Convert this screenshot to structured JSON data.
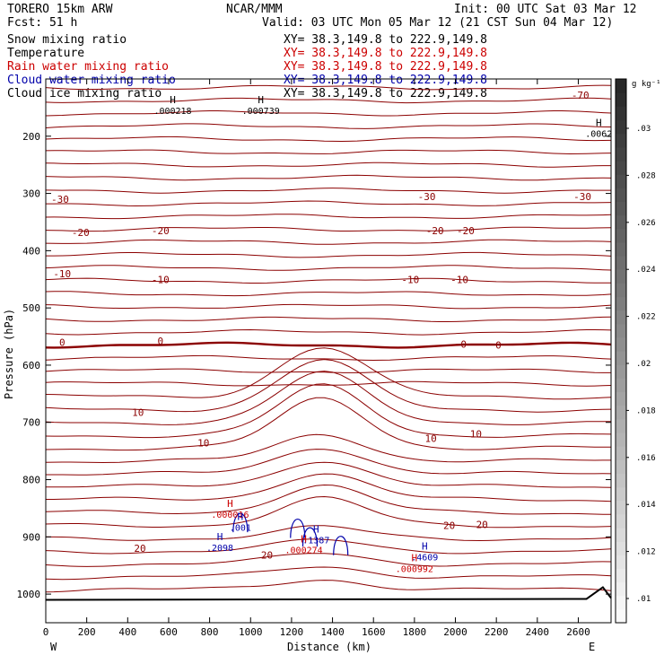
{
  "header": {
    "model": "TORERO  15km ARW",
    "center": "NCAR/MMM",
    "init": "Init: 00 UTC Sat 03 Mar 12",
    "fcst": "Fcst:   51 h",
    "valid": "Valid: 03 UTC Mon 05 Mar 12 (21 CST Sun 04 Mar 12)"
  },
  "fields": [
    {
      "name": "Snow mixing ratio",
      "xy": "XY=  38.3,149.8 to 222.9,149.8",
      "color": "#000000"
    },
    {
      "name": "Temperature",
      "xy": "XY=  38.3,149.8 to 222.9,149.8",
      "color": "#8b0000"
    },
    {
      "name": "Rain water mixing ratio",
      "xy": "XY=  38.3,149.8 to 222.9,149.8",
      "color": "#cc0000"
    },
    {
      "name": "Cloud water mixing ratio",
      "xy": "XY=  38.3,149.8 to 222.9,149.8",
      "color": "#0000aa"
    },
    {
      "name": "Cloud ice mixing ratio",
      "xy": "XY=  38.3,149.8 to 222.9,149.8",
      "color": "#000000"
    }
  ],
  "colorbar": {
    "units": "g kg⁻¹",
    "ticks": [
      ".01",
      ".012",
      ".014",
      ".016",
      ".018",
      ".02",
      ".022",
      ".024",
      ".026",
      ".028",
      ".03"
    ]
  },
  "chart_data": {
    "type": "contour",
    "xlabel": "Distance (km)",
    "ylabel": "Pressure (hPa)",
    "xlim": [
      0,
      2760
    ],
    "ylim": [
      1050,
      100
    ],
    "x_ticks": [
      "0",
      "200",
      "400",
      "600",
      "800",
      "1000",
      "1200",
      "1400",
      "1600",
      "1800",
      "2000",
      "2200",
      "2400",
      "2600"
    ],
    "y_ticks": [
      "200",
      "300",
      "400",
      "500",
      "600",
      "700",
      "800",
      "900",
      "1000"
    ],
    "x_end_labels": {
      "left": "W",
      "right": "E"
    },
    "temperature_contours": [
      {
        "label": "-70",
        "pressure": 128
      },
      {
        "label": "-30",
        "pressure": 318
      },
      {
        "label": "-20",
        "pressure": 365
      },
      {
        "label": "-10",
        "pressure": 450
      },
      {
        "label": "0",
        "pressure": 560
      },
      {
        "label": "10",
        "pressure": 690
      },
      {
        "label": "20",
        "pressure": 880
      }
    ],
    "contour_labels": [
      {
        "text": "-70",
        "x": 2610,
        "p": 128,
        "color": "#8b0000"
      },
      {
        "text": "-30",
        "x": 70,
        "p": 310,
        "color": "#8b0000"
      },
      {
        "text": "-30",
        "x": 1860,
        "p": 305,
        "color": "#8b0000"
      },
      {
        "text": "-30",
        "x": 2620,
        "p": 305,
        "color": "#8b0000"
      },
      {
        "text": "-20",
        "x": 170,
        "p": 368,
        "color": "#8b0000"
      },
      {
        "text": "-20",
        "x": 560,
        "p": 365,
        "color": "#8b0000"
      },
      {
        "text": "-20",
        "x": 1900,
        "p": 365,
        "color": "#8b0000"
      },
      {
        "text": "-20",
        "x": 2050,
        "p": 365,
        "color": "#8b0000"
      },
      {
        "text": "-10",
        "x": 80,
        "p": 440,
        "color": "#8b0000"
      },
      {
        "text": "-10",
        "x": 560,
        "p": 450,
        "color": "#8b0000"
      },
      {
        "text": "-10",
        "x": 1780,
        "p": 450,
        "color": "#8b0000"
      },
      {
        "text": "-10",
        "x": 2020,
        "p": 450,
        "color": "#8b0000"
      },
      {
        "text": "0",
        "x": 80,
        "p": 560,
        "color": "#8b0000"
      },
      {
        "text": "0",
        "x": 560,
        "p": 558,
        "color": "#8b0000"
      },
      {
        "text": "0",
        "x": 2040,
        "p": 563,
        "color": "#8b0000"
      },
      {
        "text": "0",
        "x": 2210,
        "p": 565,
        "color": "#8b0000"
      },
      {
        "text": "10",
        "x": 450,
        "p": 682,
        "color": "#8b0000"
      },
      {
        "text": "10",
        "x": 770,
        "p": 736,
        "color": "#8b0000"
      },
      {
        "text": "10",
        "x": 1880,
        "p": 728,
        "color": "#8b0000"
      },
      {
        "text": "10",
        "x": 2100,
        "p": 720,
        "color": "#8b0000"
      },
      {
        "text": "20",
        "x": 460,
        "p": 920,
        "color": "#8b0000"
      },
      {
        "text": "20",
        "x": 1080,
        "p": 932,
        "color": "#8b0000"
      },
      {
        "text": "20",
        "x": 1970,
        "p": 880,
        "color": "#8b0000"
      },
      {
        "text": "20",
        "x": 2130,
        "p": 878,
        "color": "#8b0000"
      }
    ],
    "extrema": [
      {
        "h": "H",
        "value": ".000218",
        "x": 620,
        "p": 155,
        "color": "#000000"
      },
      {
        "h": "H",
        "value": ".000739",
        "x": 1050,
        "p": 155,
        "color": "#000000"
      },
      {
        "h": "H",
        "value": ".0062",
        "x": 2700,
        "p": 195,
        "color": "#000000"
      },
      {
        "h": "H",
        "value": ".000016",
        "x": 900,
        "p": 860,
        "color": "#cc0000"
      },
      {
        "h": "H",
        "value": ".001",
        "x": 950,
        "p": 883,
        "color": "#0000aa"
      },
      {
        "h": "H",
        "value": ".2098",
        "x": 850,
        "p": 918,
        "color": "#0000aa"
      },
      {
        "h": "H",
        "value": ".1387",
        "x": 1320,
        "p": 905,
        "color": "#0000aa"
      },
      {
        "h": "H",
        "value": ".000274",
        "x": 1260,
        "p": 922,
        "color": "#cc0000"
      },
      {
        "h": "H",
        "value": ".4609",
        "x": 1850,
        "p": 935,
        "color": "#0000aa"
      },
      {
        "h": "H",
        "value": ".000992",
        "x": 1800,
        "p": 955,
        "color": "#cc0000"
      }
    ],
    "surface_pressure": 1010,
    "grid": false,
    "legend": "top-left"
  },
  "colors": {
    "temperature": "#8b0000",
    "rain": "#cc0000",
    "cloud_water": "#0000aa",
    "snow": "#000000",
    "axes": "#000000"
  }
}
